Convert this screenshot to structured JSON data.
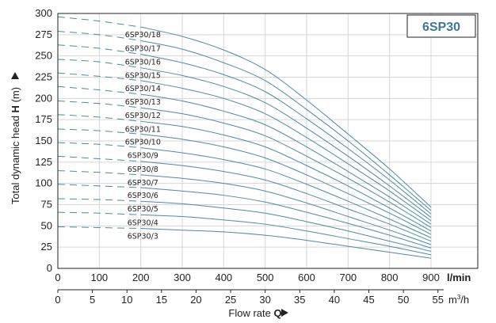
{
  "model_tag": "6SP30",
  "chart_data": {
    "type": "line",
    "title": "",
    "ylabel": "Total dynamic head H (m)",
    "ylabel_parts": [
      "Total dynamic head ",
      "H",
      " (m)"
    ],
    "xlabel": "Flow rate Q",
    "xlabel_parts": [
      "Flow rate ",
      "Q"
    ],
    "ylim": [
      0,
      300
    ],
    "y_ticks": [
      0,
      25,
      50,
      75,
      100,
      125,
      150,
      175,
      200,
      225,
      250,
      275,
      300
    ],
    "x_lmin": {
      "unit": "l/min",
      "range": [
        0,
        900
      ],
      "ticks": [
        0,
        100,
        200,
        300,
        400,
        500,
        600,
        700,
        800,
        900
      ]
    },
    "x_m3h": {
      "unit": "m³/h",
      "unit_base": "m",
      "unit_exp": "3",
      "unit_tail": "/h",
      "ticks": [
        0,
        5,
        10,
        15,
        20,
        25,
        30,
        35,
        40,
        45,
        50,
        55
      ]
    },
    "grid": true,
    "line_color": "#4a8aa8",
    "flow_lmin": [
      0,
      100,
      200,
      300,
      400,
      500,
      600,
      700,
      800,
      900
    ],
    "dashed_until_lmin": 200,
    "series": [
      {
        "name": "6SP30/3",
        "values": [
          49,
          48,
          47,
          45,
          43,
          39,
          33,
          26,
          19,
          12
        ]
      },
      {
        "name": "6SP30/4",
        "values": [
          66,
          65,
          63,
          61,
          57,
          52,
          44,
          35,
          26,
          16
        ]
      },
      {
        "name": "6SP30/5",
        "values": [
          82,
          81,
          79,
          76,
          71,
          65,
          55,
          44,
          32,
          20
        ]
      },
      {
        "name": "6SP30/6",
        "values": [
          99,
          97,
          95,
          91,
          86,
          78,
          66,
          53,
          39,
          24
        ]
      },
      {
        "name": "6SP30/7",
        "values": [
          115,
          113,
          110,
          106,
          100,
          91,
          77,
          61,
          45,
          28
        ]
      },
      {
        "name": "6SP30/8",
        "values": [
          132,
          129,
          126,
          121,
          114,
          104,
          88,
          70,
          52,
          32
        ]
      },
      {
        "name": "6SP30/9",
        "values": [
          148,
          146,
          142,
          136,
          128,
          117,
          99,
          79,
          58,
          36
        ]
      },
      {
        "name": "6SP30/10",
        "values": [
          164,
          162,
          158,
          152,
          143,
          130,
          110,
          88,
          65,
          40
        ]
      },
      {
        "name": "6SP30/11",
        "values": [
          181,
          178,
          173,
          167,
          157,
          143,
          121,
          97,
          71,
          44
        ]
      },
      {
        "name": "6SP30/12",
        "values": [
          197,
          194,
          189,
          182,
          171,
          156,
          132,
          106,
          78,
          48
        ]
      },
      {
        "name": "6SP30/13",
        "values": [
          214,
          210,
          205,
          197,
          185,
          169,
          143,
          114,
          84,
          52
        ]
      },
      {
        "name": "6SP30/14",
        "values": [
          230,
          226,
          221,
          212,
          200,
          182,
          154,
          123,
          91,
          56
        ]
      },
      {
        "name": "6SP30/15",
        "values": [
          246,
          243,
          236,
          227,
          214,
          195,
          165,
          132,
          97,
          60
        ]
      },
      {
        "name": "6SP30/16",
        "values": [
          263,
          259,
          252,
          242,
          228,
          208,
          176,
          141,
          104,
          64
        ]
      },
      {
        "name": "6SP30/17",
        "values": [
          279,
          275,
          268,
          258,
          242,
          221,
          187,
          150,
          110,
          68
        ]
      },
      {
        "name": "6SP30/18",
        "values": [
          296,
          291,
          284,
          273,
          257,
          234,
          198,
          158,
          117,
          72
        ]
      }
    ]
  }
}
